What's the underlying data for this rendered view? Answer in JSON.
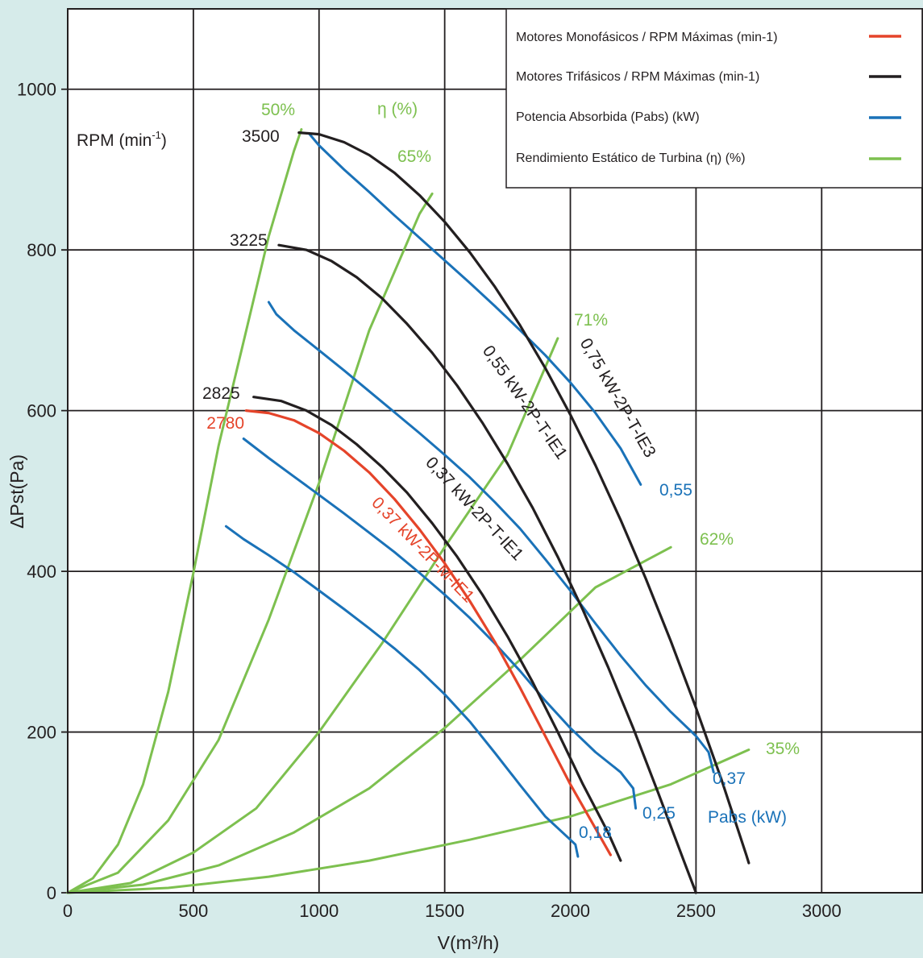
{
  "chart_data": {
    "type": "line",
    "xlabel": "V(m³/h)",
    "ylabel": "ΔPst(Pa)",
    "xlim": [
      0,
      3400
    ],
    "ylim": [
      0,
      1100
    ],
    "x_ticks": [
      "0",
      "500",
      "1000",
      "1500",
      "2000",
      "2500",
      "3000"
    ],
    "y_ticks": [
      "0",
      "200",
      "400",
      "600",
      "800",
      "1000"
    ],
    "grid": true,
    "legend_position": "top-right",
    "colors": {
      "mono": "#e5442a",
      "tri": "#231f20",
      "power": "#1a72b8",
      "eff": "#7dc04f"
    },
    "legend": [
      {
        "label": "Motores Monofásicos / RPM Máximas (min-1)",
        "color_key": "mono"
      },
      {
        "label": "Motores Trifásicos / RPM Máximas (min-1)",
        "color_key": "tri"
      },
      {
        "label": "Potencia Absorbida (Pabs) (kW)",
        "color_key": "power"
      },
      {
        "label": "Rendimiento Estático de Turbina (η) (%)",
        "color_key": "eff"
      }
    ],
    "series": [
      {
        "name": "0,37 kW-2P-M-IE1",
        "rpm": "2780",
        "motor": "mono",
        "x": [
          710,
          800,
          900,
          1000,
          1100,
          1200,
          1300,
          1400,
          1500,
          1600,
          1700,
          1800,
          1900,
          2000,
          2100,
          2160
        ],
        "y": [
          600,
          597,
          588,
          572,
          550,
          523,
          490,
          452,
          410,
          363,
          312,
          255,
          195,
          135,
          80,
          47
        ]
      },
      {
        "name": "0,37 kW-2P-T-IE1",
        "rpm": "2825",
        "motor": "tri",
        "x": [
          740,
          850,
          950,
          1050,
          1150,
          1250,
          1350,
          1450,
          1550,
          1650,
          1750,
          1850,
          1950,
          2050,
          2150,
          2200
        ],
        "y": [
          617,
          612,
          600,
          582,
          558,
          530,
          498,
          460,
          418,
          371,
          319,
          262,
          200,
          135,
          75,
          40
        ]
      },
      {
        "name": "0,55 kW-2P-T-IE1",
        "rpm": "3225",
        "motor": "tri",
        "x": [
          840,
          950,
          1050,
          1150,
          1250,
          1350,
          1450,
          1550,
          1650,
          1750,
          1850,
          1950,
          2050,
          2150,
          2250,
          2350,
          2450,
          2500
        ],
        "y": [
          806,
          800,
          786,
          766,
          740,
          708,
          672,
          631,
          585,
          534,
          479,
          418,
          352,
          281,
          205,
          124,
          41,
          0
        ]
      },
      {
        "name": "0,75 kW-2P-T-IE3",
        "rpm": "3500",
        "motor": "tri",
        "x": [
          920,
          1000,
          1100,
          1200,
          1300,
          1400,
          1500,
          1600,
          1700,
          1800,
          1900,
          2000,
          2100,
          2200,
          2300,
          2400,
          2500,
          2600,
          2700,
          2710
        ],
        "y": [
          946,
          944,
          934,
          918,
          896,
          868,
          835,
          797,
          754,
          706,
          653,
          595,
          532,
          464,
          391,
          313,
          230,
          142,
          47,
          37
        ]
      }
    ],
    "power_curves": [
      {
        "label": "0,18",
        "x": [
          630,
          700,
          800,
          900,
          1000,
          1100,
          1200,
          1300,
          1400,
          1500,
          1600,
          1700,
          1800,
          1900,
          2000,
          2020,
          2030
        ],
        "y": [
          456,
          440,
          420,
          399,
          376,
          353,
          329,
          304,
          277,
          247,
          213,
          174,
          134,
          95,
          66,
          60,
          45
        ]
      },
      {
        "label": "0,25",
        "x": [
          700,
          800,
          900,
          1000,
          1100,
          1200,
          1300,
          1400,
          1500,
          1600,
          1700,
          1800,
          1900,
          2000,
          2100,
          2200,
          2250,
          2260
        ],
        "y": [
          565,
          541,
          518,
          495,
          472,
          448,
          424,
          398,
          371,
          342,
          310,
          276,
          239,
          205,
          175,
          150,
          130,
          105
        ]
      },
      {
        "label": "0,37",
        "x": [
          800,
          830,
          900,
          1000,
          1100,
          1200,
          1300,
          1400,
          1500,
          1600,
          1700,
          1800,
          1900,
          2000,
          2100,
          2200,
          2300,
          2400,
          2500,
          2550,
          2570
        ],
        "y": [
          735,
          720,
          700,
          675,
          650,
          624,
          598,
          572,
          545,
          517,
          486,
          453,
          415,
          376,
          335,
          295,
          258,
          225,
          195,
          175,
          150
        ]
      },
      {
        "label": "0,55",
        "x": [
          960,
          1000,
          1100,
          1200,
          1300,
          1400,
          1500,
          1600,
          1700,
          1800,
          1900,
          2000,
          2100,
          2200,
          2280
        ],
        "y": [
          945,
          930,
          900,
          872,
          843,
          815,
          787,
          759,
          730,
          700,
          669,
          635,
          597,
          553,
          508
        ]
      }
    ],
    "efficiency_curves": [
      {
        "label": "50%",
        "x": [
          0,
          100,
          200,
          300,
          400,
          500,
          600,
          700,
          800,
          900,
          930
        ],
        "y": [
          0,
          18,
          60,
          135,
          250,
          398,
          556,
          686,
          817,
          923,
          950
        ]
      },
      {
        "label": "65%",
        "x": [
          0,
          200,
          400,
          600,
          800,
          1000,
          1200,
          1400,
          1450
        ],
        "y": [
          0,
          25,
          90,
          190,
          340,
          510,
          700,
          845,
          870
        ]
      },
      {
        "label": "71%",
        "x": [
          0,
          250,
          500,
          750,
          1000,
          1250,
          1500,
          1750,
          1950
        ],
        "y": [
          0,
          12,
          50,
          105,
          200,
          310,
          430,
          545,
          690
        ]
      },
      {
        "label": "62%",
        "x": [
          0,
          300,
          600,
          900,
          1200,
          1500,
          1800,
          2100,
          2400
        ],
        "y": [
          0,
          10,
          34,
          75,
          130,
          205,
          290,
          380,
          430
        ]
      },
      {
        "label": "35%",
        "x": [
          0,
          400,
          800,
          1200,
          1600,
          2000,
          2400,
          2710
        ],
        "y": [
          0,
          6,
          20,
          40,
          66,
          95,
          135,
          178
        ]
      }
    ],
    "annotations": {
      "rpm_header": "RPM (min",
      "rpm_header_sup": "-1",
      "rpm_header_close": ")",
      "eta_header": "η (%)",
      "pabs_header": "Pabs (kW)"
    }
  }
}
